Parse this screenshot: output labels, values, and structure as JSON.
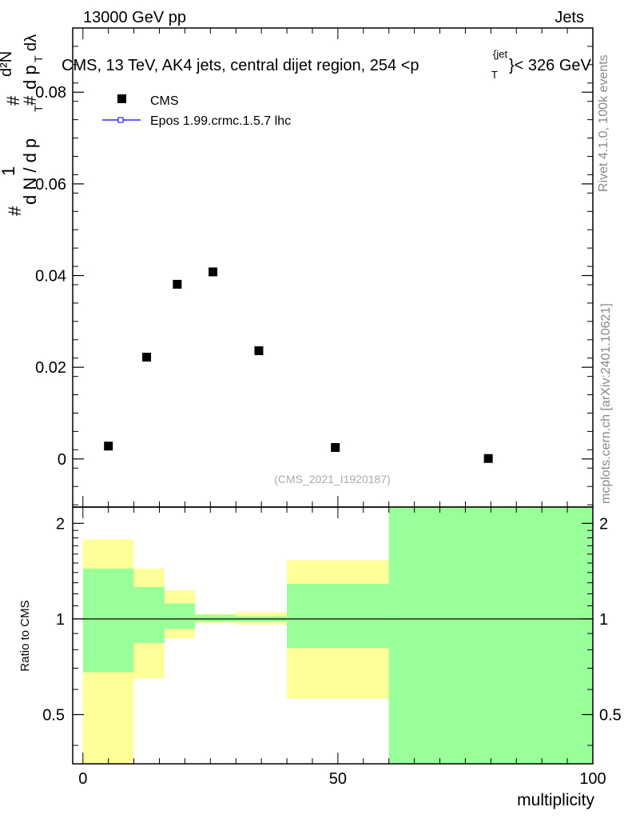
{
  "header": {
    "beam": "13000 GeV pp",
    "category": "Jets",
    "title_main": "CMS, 13 TeV, AK4 jets, central dijet region, 254 <p",
    "title_sup": "{jet",
    "title_sub": "T",
    "title_end": "}< 326 GeV",
    "side_rivet": "Rivet 4.1.0,  100k events",
    "side_site": "mcplots.cern.ch [arXiv:2401.10621]",
    "analysis_id": "(CMS_2021_I1920187)"
  },
  "legend": {
    "data_label": "CMS",
    "mc_label": "Epos 1.99.crmc.1.5.7 lhc"
  },
  "ylabel": {
    "hash": "#",
    "one": "1",
    "dn": "d N / d p",
    "sub_T": "T",
    "num_hash": "#",
    "num_d2N": "d²N",
    "den_hash": "#",
    "den_dpT": "d p",
    "den_sub": "T",
    "den_dlambda": "dλ"
  },
  "colors": {
    "yellow_band": "#ffff99",
    "green_band": "#99ff99",
    "mc_line": "#0000ff",
    "data": "#000000"
  },
  "chart_data": [
    {
      "type": "scatter",
      "name": "main",
      "xlim": [
        -2,
        100
      ],
      "ylim": [
        -0.0105,
        0.094
      ],
      "yticks": [
        0,
        0.02,
        0.04,
        0.06,
        0.08
      ],
      "ytick_labels": [
        "0",
        "0.02",
        "0.04",
        "0.06",
        "0.08"
      ],
      "series": [
        {
          "name": "CMS",
          "x": [
            5,
            12.5,
            18.5,
            25.5,
            34.5,
            49.5,
            79.5
          ],
          "y": [
            0.0028,
            0.0222,
            0.0381,
            0.0408,
            0.0236,
            0.0025,
            0.0001
          ]
        }
      ]
    },
    {
      "type": "area",
      "name": "ratio",
      "xlabel": "multiplicity",
      "ylabel": "Ratio to CMS",
      "xlim": [
        -2,
        100
      ],
      "ylim": [
        0.35,
        2.25
      ],
      "xticks": [
        0,
        50,
        100
      ],
      "xtick_labels": [
        "0",
        "50",
        "100"
      ],
      "yticks": [
        0.5,
        1,
        2
      ],
      "ytick_labels": [
        "0.5",
        "1",
        "2"
      ],
      "bins": [
        {
          "lo": 0,
          "hi": 10,
          "yellow": [
            0.1,
            1.78
          ],
          "green": [
            0.68,
            1.44
          ]
        },
        {
          "lo": 10,
          "hi": 16,
          "yellow": [
            0.65,
            1.44
          ],
          "green": [
            0.84,
            1.26
          ]
        },
        {
          "lo": 16,
          "hi": 22,
          "yellow": [
            0.87,
            1.23
          ],
          "green": [
            0.93,
            1.12
          ]
        },
        {
          "lo": 22,
          "hi": 30,
          "yellow": [
            0.97,
            1.04
          ],
          "green": [
            0.98,
            1.03
          ]
        },
        {
          "lo": 30,
          "hi": 40,
          "yellow": [
            0.96,
            1.05
          ],
          "green": [
            0.98,
            1.02
          ]
        },
        {
          "lo": 40,
          "hi": 60,
          "yellow": [
            0.56,
            1.53
          ],
          "green": [
            0.81,
            1.29
          ]
        },
        {
          "lo": 60,
          "hi": 100,
          "yellow": [
            0.1,
            2.5
          ],
          "green": [
            0.1,
            2.5
          ]
        }
      ],
      "reference_line": 1
    }
  ]
}
